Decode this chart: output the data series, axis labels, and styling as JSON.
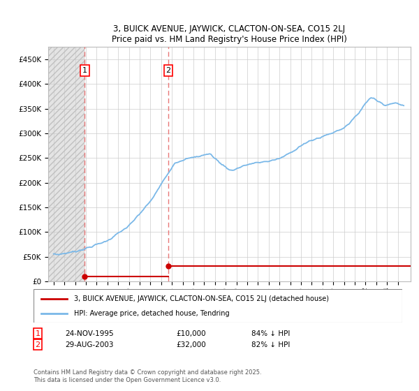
{
  "title": "3, BUICK AVENUE, JAYWICK, CLACTON-ON-SEA, CO15 2LJ",
  "subtitle": "Price paid vs. HM Land Registry's House Price Index (HPI)",
  "legend_line1": "3, BUICK AVENUE, JAYWICK, CLACTON-ON-SEA, CO15 2LJ (detached house)",
  "legend_line2": "HPI: Average price, detached house, Tendring",
  "annotation1_date": "24-NOV-1995",
  "annotation1_price": "£10,000",
  "annotation1_hpi": "84% ↓ HPI",
  "annotation2_date": "29-AUG-2003",
  "annotation2_price": "£32,000",
  "annotation2_hpi": "82% ↓ HPI",
  "copyright": "Contains HM Land Registry data © Crown copyright and database right 2025.\nThis data is licensed under the Open Government Licence v3.0.",
  "sale1_year": 1995.9,
  "sale1_price": 10000,
  "sale2_year": 2003.66,
  "sale2_price": 32000,
  "hpi_color": "#7ab8e8",
  "sale_color": "#cc0000",
  "vline_color": "#e87878",
  "ylim_max": 475000,
  "yticks": [
    0,
    50000,
    100000,
    150000,
    200000,
    250000,
    300000,
    350000,
    400000,
    450000
  ],
  "xlim_start": 1992.5,
  "xlim_end": 2026.2,
  "figwidth": 6.0,
  "figheight": 5.6,
  "dpi": 100
}
